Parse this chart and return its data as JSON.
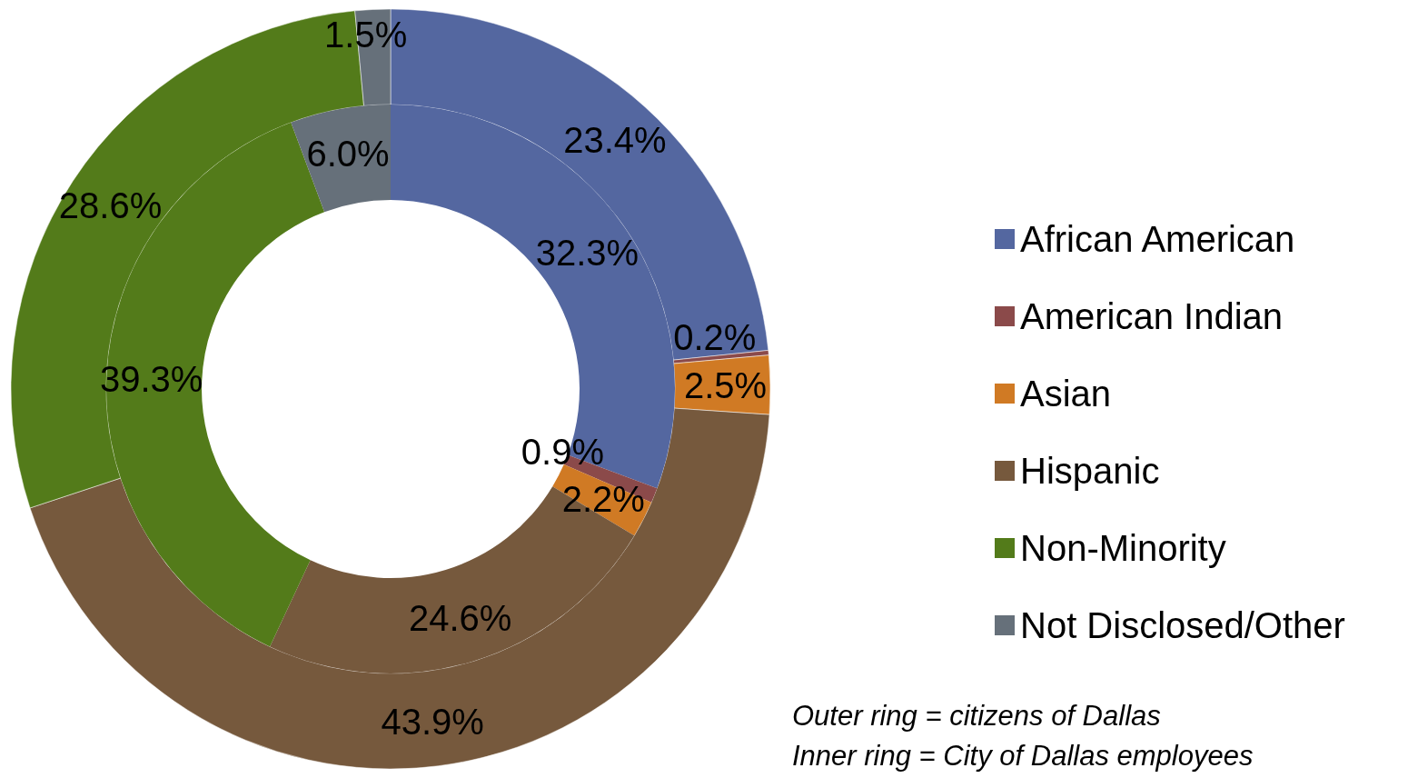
{
  "chart_data": {
    "type": "donut",
    "categories": [
      "African American",
      "American Indian",
      "Asian",
      "Hispanic",
      "Non-Minority",
      "Not Disclosed/Other"
    ],
    "colors": [
      "#5467a0",
      "#8b4a4a",
      "#d07a24",
      "#76593d",
      "#537b1a",
      "#66707a"
    ],
    "series": [
      {
        "values": [
          23.4,
          0.2,
          2.5,
          43.9,
          28.6,
          1.5
        ],
        "value_labels": [
          "23.4%",
          "0.2%",
          "2.5%",
          "43.9%",
          "28.6%",
          "1.5%"
        ]
      },
      {
        "values": [
          32.3,
          0.9,
          2.2,
          24.6,
          39.3,
          6.0
        ],
        "value_labels": [
          "32.3%",
          "0.9%",
          "2.2%",
          "24.6%",
          "39.3%",
          "6.0%"
        ]
      }
    ],
    "legend": "right",
    "annotations": [
      "Outer ring = citizens of Dallas",
      "Inner ring = City of Dallas employees"
    ]
  }
}
